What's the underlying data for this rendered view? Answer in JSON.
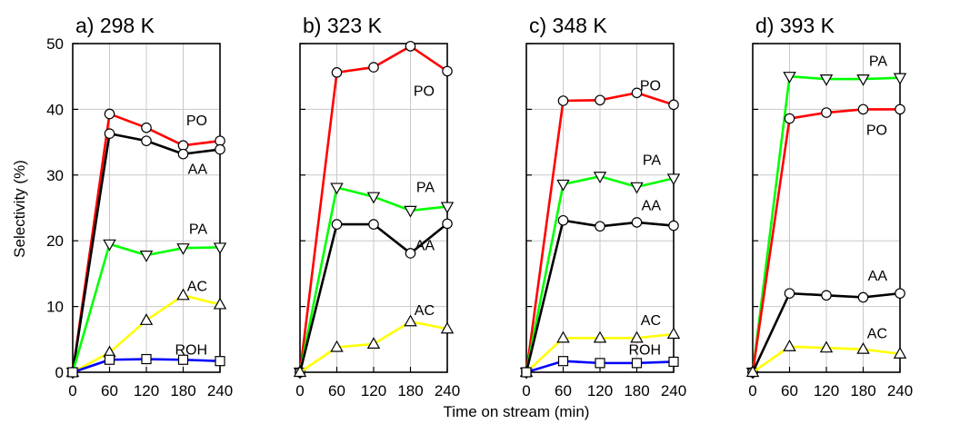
{
  "chart_data": {
    "type": "line",
    "xlabel": "Time on stream (min)",
    "ylabel": "Selectivity (%)",
    "xlim": [
      0,
      240
    ],
    "ylim": [
      0,
      50
    ],
    "xticks": [
      0,
      60,
      120,
      180,
      240
    ],
    "yticks": [
      0,
      10,
      20,
      30,
      40,
      50
    ],
    "grid": true,
    "colors": {
      "PO": "#ff0000",
      "AA": "#000000",
      "PA": "#00ff00",
      "AC": "#ffff00",
      "ROH": "#0000ff"
    },
    "markers": {
      "PO": "circle",
      "AA": "circle",
      "PA": "triangle-down",
      "AC": "triangle-up",
      "ROH": "square"
    },
    "panels": [
      {
        "title": "a) 298 K",
        "series": [
          {
            "name": "PO",
            "x": [
              0,
              60,
              120,
              180,
              240
            ],
            "y": [
              0,
              39.3,
              37.2,
              34.5,
              35.2
            ]
          },
          {
            "name": "AA",
            "x": [
              0,
              60,
              120,
              180,
              240
            ],
            "y": [
              0,
              36.3,
              35.2,
              33.2,
              33.9
            ]
          },
          {
            "name": "PA",
            "x": [
              0,
              60,
              120,
              180,
              240
            ],
            "y": [
              0,
              19.5,
              17.8,
              18.9,
              19.0
            ]
          },
          {
            "name": "AC",
            "x": [
              0,
              60,
              120,
              180,
              240
            ],
            "y": [
              0,
              3.0,
              7.9,
              11.7,
              10.3
            ]
          },
          {
            "name": "ROH",
            "x": [
              0,
              60,
              120,
              180,
              240
            ],
            "y": [
              0,
              1.9,
              2.0,
              1.9,
              1.7
            ]
          }
        ]
      },
      {
        "title": "b) 323 K",
        "series": [
          {
            "name": "PO",
            "x": [
              0,
              60,
              120,
              180,
              240
            ],
            "y": [
              0,
              45.6,
              46.4,
              49.6,
              45.8
            ]
          },
          {
            "name": "PA",
            "x": [
              0,
              60,
              120,
              180,
              240
            ],
            "y": [
              0,
              28.1,
              26.7,
              24.6,
              25.2
            ]
          },
          {
            "name": "AA",
            "x": [
              0,
              60,
              120,
              180,
              240
            ],
            "y": [
              0,
              22.5,
              22.5,
              18.1,
              22.6
            ]
          },
          {
            "name": "AC",
            "x": [
              0,
              60,
              120,
              180,
              240
            ],
            "y": [
              0,
              3.8,
              4.3,
              7.7,
              6.6
            ]
          }
        ]
      },
      {
        "title": "c) 348 K",
        "series": [
          {
            "name": "PO",
            "x": [
              0,
              60,
              120,
              180,
              240
            ],
            "y": [
              0,
              41.3,
              41.4,
              42.5,
              40.7
            ]
          },
          {
            "name": "PA",
            "x": [
              0,
              60,
              120,
              180,
              240
            ],
            "y": [
              0,
              28.6,
              29.8,
              28.2,
              29.5
            ]
          },
          {
            "name": "AA",
            "x": [
              0,
              60,
              120,
              180,
              240
            ],
            "y": [
              0,
              23.1,
              22.2,
              22.8,
              22.3
            ]
          },
          {
            "name": "AC",
            "x": [
              0,
              60,
              120,
              180,
              240
            ],
            "y": [
              0,
              5.2,
              5.2,
              5.2,
              5.8
            ]
          },
          {
            "name": "ROH",
            "x": [
              0,
              60,
              120,
              180,
              240
            ],
            "y": [
              0,
              1.7,
              1.4,
              1.4,
              1.6
            ]
          }
        ]
      },
      {
        "title": "d) 393 K",
        "series": [
          {
            "name": "PA",
            "x": [
              0,
              60,
              120,
              180,
              240
            ],
            "y": [
              0,
              45.0,
              44.6,
              44.6,
              44.8
            ]
          },
          {
            "name": "PO",
            "x": [
              0,
              60,
              120,
              180,
              240
            ],
            "y": [
              0,
              38.6,
              39.5,
              40.0,
              40.0
            ]
          },
          {
            "name": "AA",
            "x": [
              0,
              60,
              120,
              180,
              240
            ],
            "y": [
              0,
              12.0,
              11.7,
              11.4,
              12.0
            ]
          },
          {
            "name": "AC",
            "x": [
              0,
              60,
              120,
              180,
              240
            ],
            "y": [
              0,
              3.9,
              3.7,
              3.5,
              2.8
            ]
          }
        ]
      }
    ]
  }
}
